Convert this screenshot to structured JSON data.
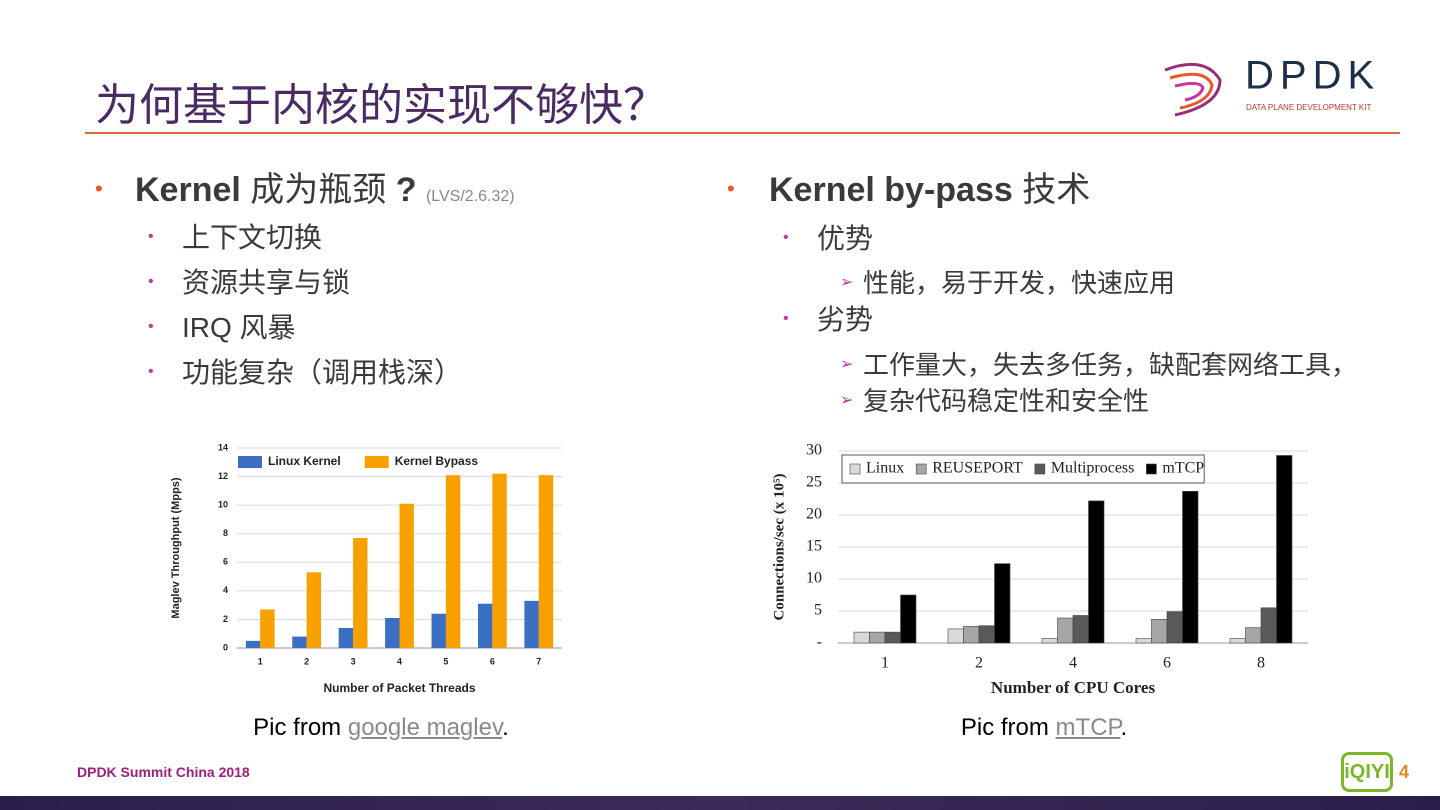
{
  "header": {
    "title": "为何基于内核的实现不够快？",
    "logo": {
      "name": "DPDK",
      "tagline": "DATA PLANE DEVELOPMENT KIT"
    }
  },
  "left": {
    "heading": {
      "parts": [
        "Kernel",
        " 成为瓶颈 ",
        "?"
      ],
      "note": "(LVS/2.6.32)"
    },
    "items": [
      "上下文切换",
      "资源共享与锁",
      "IRQ 风暴",
      "功能复杂（调用栈深）"
    ],
    "caption": {
      "prefix": "Pic from ",
      "link": "google maglev",
      "suffix": "."
    }
  },
  "right": {
    "heading": {
      "parts": [
        "Kernel by-pass",
        " 技术"
      ]
    },
    "items": [
      {
        "text": "优势",
        "subitems": [
          "性能，易于开发，快速应用"
        ]
      },
      {
        "text": "劣势",
        "subitems": [
          "工作量大，失去多任务，缺配套网络工具，",
          "复杂代码稳定性和安全性"
        ]
      }
    ],
    "caption": {
      "prefix": "Pic from ",
      "link": "mTCP",
      "suffix": "."
    }
  },
  "chart_data": [
    {
      "type": "bar",
      "categories": [
        "1",
        "2",
        "3",
        "4",
        "5",
        "6",
        "7"
      ],
      "series": [
        {
          "name": "Linux Kernel",
          "color": "#3a6fc4",
          "values": [
            0.5,
            0.8,
            1.4,
            2.1,
            2.4,
            3.1,
            3.3
          ]
        },
        {
          "name": "Kernel Bypass",
          "color": "#f7a000",
          "values": [
            2.7,
            5.3,
            7.7,
            10.1,
            12.1,
            12.2,
            12.1
          ]
        }
      ],
      "ylim": [
        0,
        14
      ],
      "yticks": [
        0,
        2,
        4,
        6,
        8,
        10,
        12,
        14
      ],
      "grid": true,
      "legend": "top",
      "y_label": "Maglev Throughput (Mpps)",
      "x_label": "Number of Packet Threads"
    },
    {
      "type": "bar",
      "categories": [
        "1",
        "2",
        "4",
        "6",
        "8"
      ],
      "series": [
        {
          "name": "Linux",
          "color": "#d9d9d9",
          "values": [
            1.7,
            2.2,
            0.7,
            0.7,
            0.7
          ]
        },
        {
          "name": "REUSEPORT",
          "color": "#a6a6a6",
          "values": [
            1.7,
            2.6,
            3.9,
            3.7,
            2.4
          ]
        },
        {
          "name": "Multiprocess",
          "color": "#595959",
          "values": [
            1.7,
            2.7,
            4.3,
            4.9,
            5.5
          ]
        },
        {
          "name": "mTCP",
          "color": "#000000",
          "values": [
            7.5,
            12.4,
            22.2,
            23.7,
            29.3
          ]
        }
      ],
      "ylim": [
        0,
        30
      ],
      "yticks": [
        {
          "value": 0,
          "label": "-"
        },
        5,
        10,
        15,
        20,
        25,
        30
      ],
      "grid": true,
      "legend": "top",
      "y_label": "Connections/sec (x 10⁵)",
      "x_label": "Number of CPU Cores"
    }
  ],
  "footer": {
    "event": "DPDK Summit China 2018",
    "page": "4",
    "brand": "iQIYI"
  }
}
